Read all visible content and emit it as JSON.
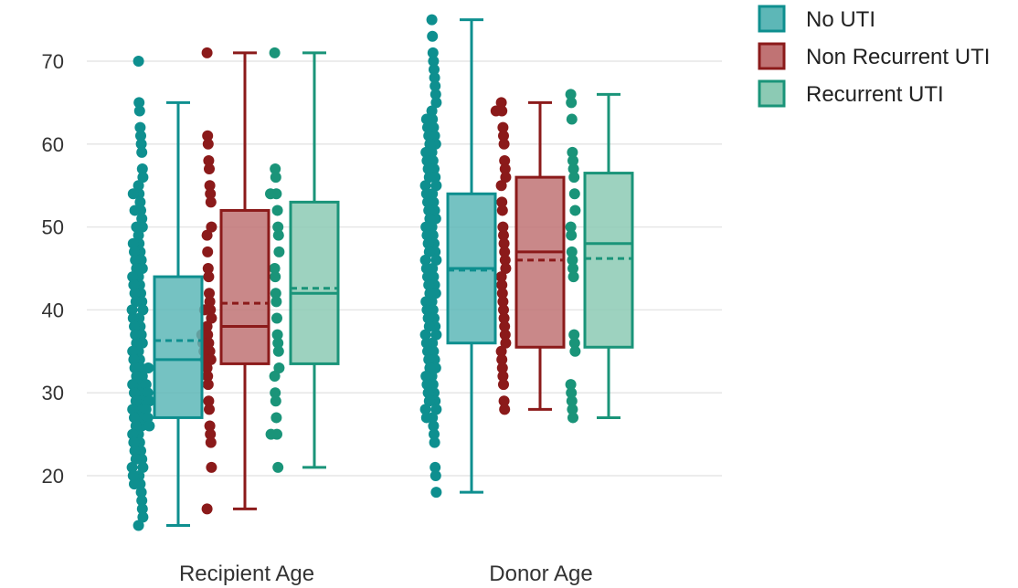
{
  "chart_data": {
    "type": "box",
    "categories": [
      "Recipient Age",
      "Donor Age"
    ],
    "ylim": [
      12,
      76
    ],
    "y_ticks": [
      20,
      30,
      40,
      50,
      60,
      70
    ],
    "grid": true,
    "legend_position": "top-right",
    "series": [
      {
        "name": "No UTI",
        "color": "#0e8f8f",
        "fill": "#5db7b7",
        "boxes": [
          {
            "category": "Recipient Age",
            "min": 14,
            "q1": 27,
            "median": 34,
            "q3": 44,
            "max": 65,
            "mean": 36.3
          },
          {
            "category": "Donor Age",
            "min": 18,
            "q1": 36,
            "median": 45,
            "q3": 54,
            "max": 75,
            "mean": 44.8
          }
        ]
      },
      {
        "name": "Non Recurrent UTI",
        "color": "#8b1a1a",
        "fill": "#c07374",
        "boxes": [
          {
            "category": "Recipient Age",
            "min": 16,
            "q1": 33.5,
            "median": 38,
            "q3": 52,
            "max": 71,
            "mean": 40.8
          },
          {
            "category": "Donor Age",
            "min": 28,
            "q1": 35.5,
            "median": 47,
            "q3": 56,
            "max": 65,
            "mean": 46
          }
        ]
      },
      {
        "name": "Recurrent UTI",
        "color": "#1a9479",
        "fill": "#8ccab4",
        "boxes": [
          {
            "category": "Recipient Age",
            "min": 21,
            "q1": 33.5,
            "median": 42,
            "q3": 53,
            "max": 71,
            "mean": 42.6
          },
          {
            "category": "Donor Age",
            "min": 27,
            "q1": 35.5,
            "median": 48,
            "q3": 56.5,
            "max": 66,
            "mean": 46.2
          }
        ]
      }
    ],
    "points": [
      {
        "series": "No UTI",
        "category": "Recipient Age",
        "values": [
          70,
          65,
          64,
          62,
          61,
          60,
          59,
          57,
          56,
          55,
          54,
          54,
          53,
          52,
          52,
          51,
          50,
          50,
          49,
          48,
          48,
          47,
          47,
          46,
          46,
          45,
          45,
          44,
          44,
          43,
          43,
          42,
          42,
          41,
          41,
          40,
          40,
          39,
          39,
          38,
          38,
          37,
          37,
          36,
          36,
          35,
          35,
          34,
          34,
          33,
          33,
          33,
          32,
          32,
          31,
          31,
          31,
          30,
          30,
          30,
          29,
          29,
          29,
          28,
          28,
          28,
          27,
          27,
          27,
          26,
          26,
          26,
          25,
          25,
          24,
          24,
          23,
          23,
          22,
          22,
          21,
          21,
          20,
          20,
          19,
          19,
          18,
          17,
          16,
          15,
          14
        ]
      },
      {
        "series": "Non Recurrent UTI",
        "category": "Recipient Age",
        "values": [
          71,
          61,
          60,
          58,
          57,
          55,
          54,
          53,
          50,
          49,
          47,
          45,
          44,
          42,
          41,
          40,
          40,
          39,
          38,
          37,
          37,
          36,
          36,
          35,
          35,
          34,
          34,
          33,
          32,
          31,
          29,
          28,
          26,
          25,
          24,
          21,
          16
        ]
      },
      {
        "series": "Recurrent UTI",
        "category": "Recipient Age",
        "values": [
          71,
          57,
          56,
          54,
          54,
          52,
          50,
          49,
          47,
          45,
          44,
          42,
          41,
          39,
          37,
          36,
          35,
          33,
          32,
          30,
          29,
          27,
          25,
          25,
          21
        ]
      },
      {
        "series": "No UTI",
        "category": "Donor Age",
        "values": [
          75,
          73,
          71,
          70,
          69,
          68,
          67,
          66,
          65,
          64,
          63,
          63,
          62,
          62,
          61,
          61,
          60,
          60,
          59,
          59,
          58,
          58,
          57,
          57,
          56,
          56,
          55,
          55,
          54,
          54,
          53,
          53,
          52,
          52,
          51,
          51,
          50,
          50,
          49,
          49,
          48,
          48,
          47,
          47,
          46,
          46,
          45,
          45,
          44,
          44,
          43,
          43,
          42,
          42,
          41,
          41,
          40,
          40,
          39,
          39,
          38,
          38,
          37,
          37,
          36,
          36,
          35,
          35,
          34,
          34,
          33,
          33,
          32,
          32,
          31,
          31,
          30,
          30,
          29,
          29,
          28,
          28,
          27,
          27,
          26,
          25,
          24,
          21,
          20,
          18
        ]
      },
      {
        "series": "Non Recurrent UTI",
        "category": "Donor Age",
        "values": [
          65,
          64,
          64,
          62,
          61,
          60,
          58,
          57,
          56,
          55,
          53,
          52,
          50,
          49,
          48,
          47,
          46,
          45,
          44,
          43,
          42,
          41,
          40,
          39,
          38,
          37,
          36,
          35,
          34,
          33,
          32,
          31,
          29,
          28
        ]
      },
      {
        "series": "Recurrent UTI",
        "category": "Donor Age",
        "values": [
          66,
          65,
          63,
          59,
          58,
          57,
          56,
          54,
          52,
          50,
          49,
          47,
          46,
          45,
          44,
          37,
          36,
          35,
          31,
          30,
          29,
          28,
          27
        ]
      }
    ]
  }
}
